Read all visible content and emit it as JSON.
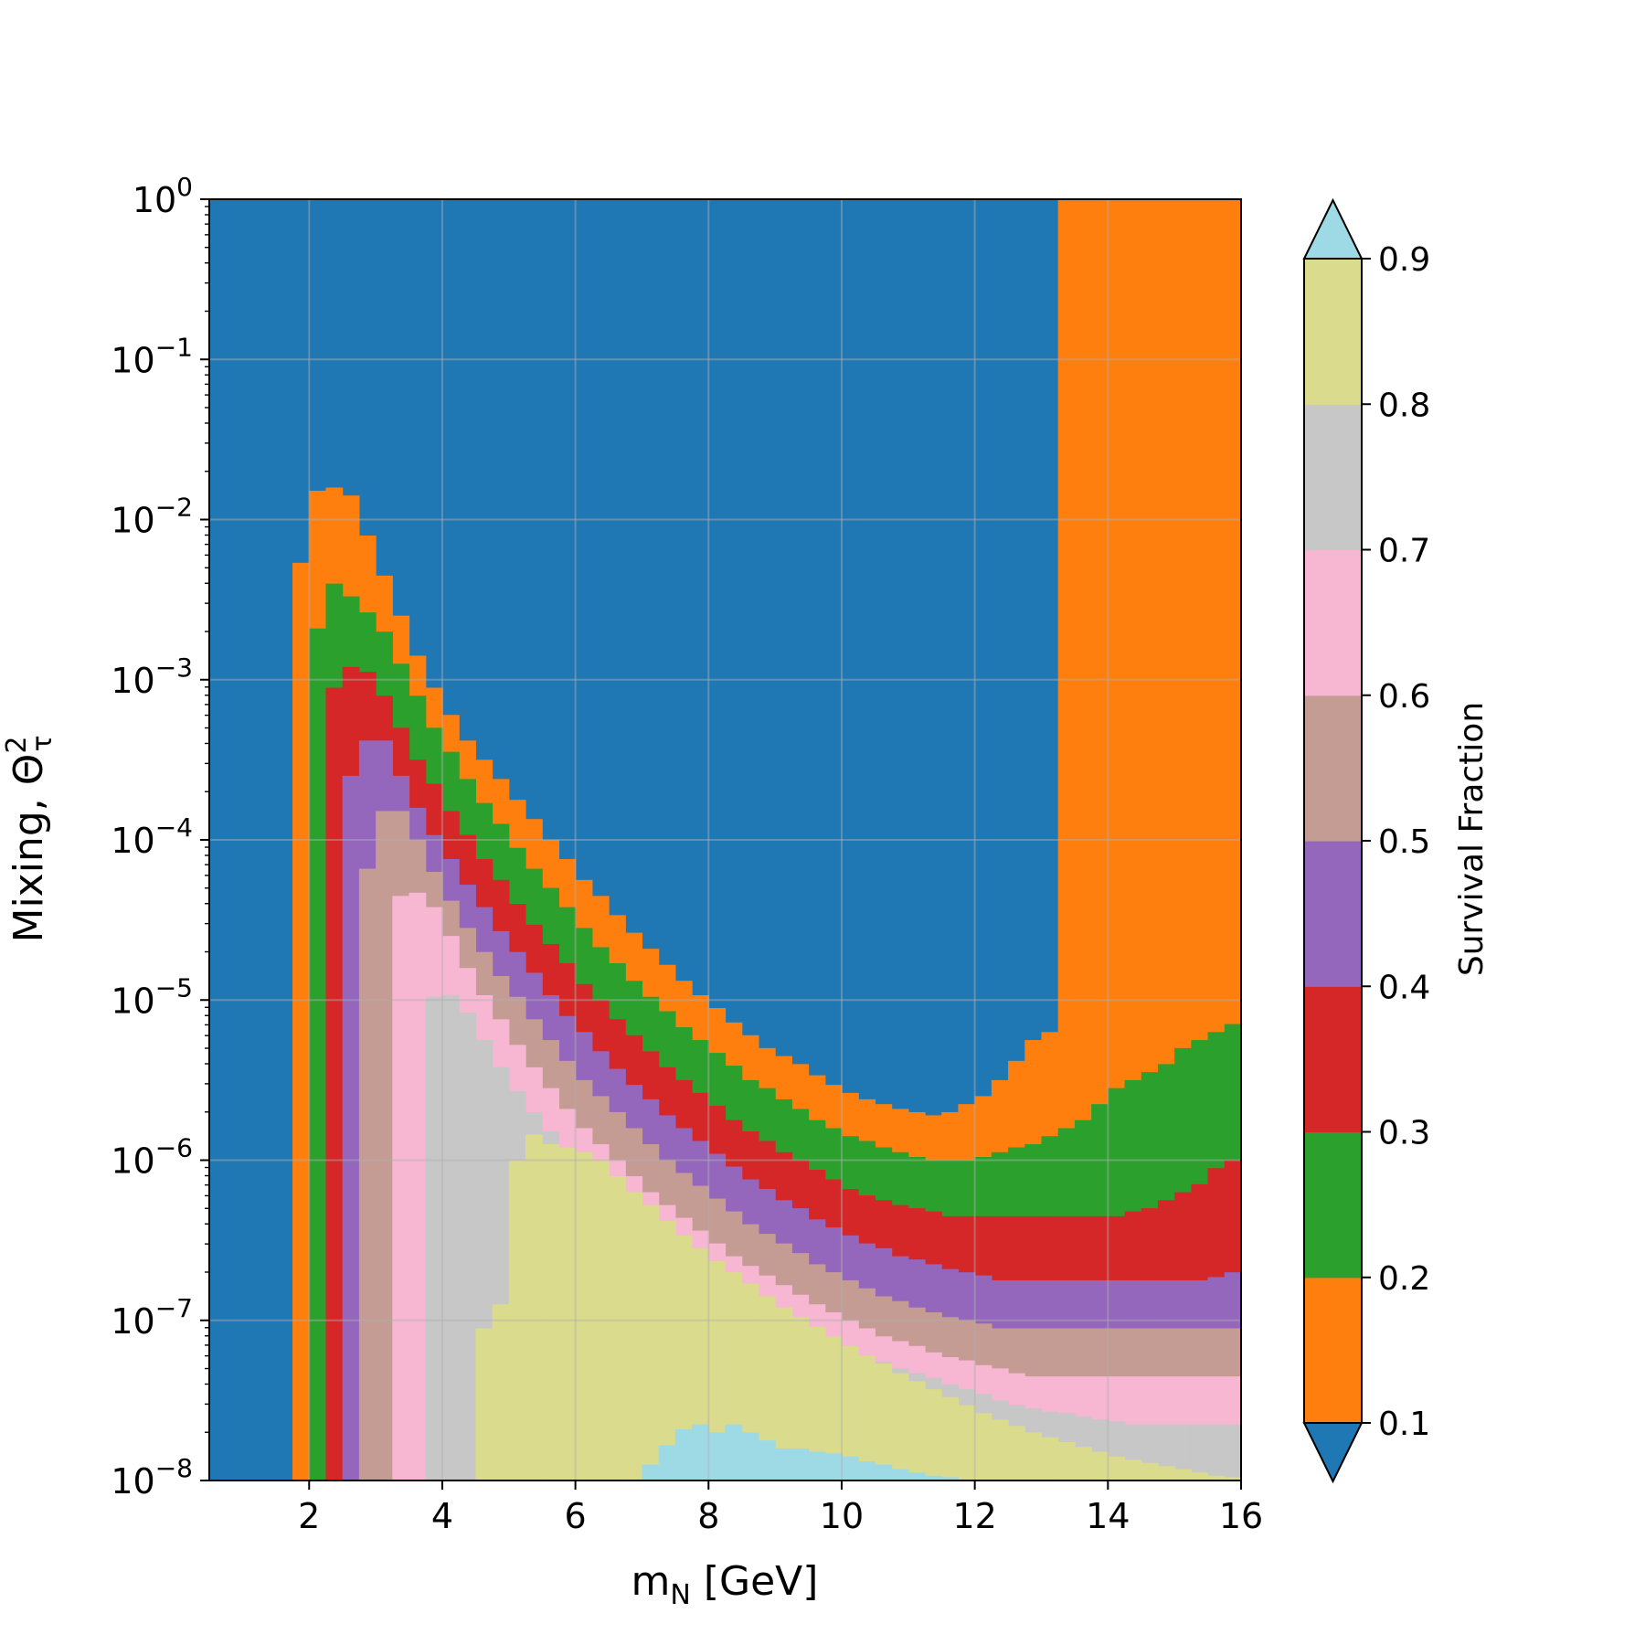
{
  "chart_data": {
    "type": "heatmap",
    "title": "",
    "xlabel": "m",
    "xlabel_sub": "N",
    "xlabel_unit": " [GeV]",
    "ylabel": "Mixing, Θ",
    "ylabel_sup": "2",
    "ylabel_sub": "τ",
    "xlim": [
      0.5,
      16
    ],
    "ylim_log10": [
      -8,
      0
    ],
    "yscale": "log",
    "grid": true,
    "x_ticks": [
      "2",
      "4",
      "6",
      "8",
      "10",
      "12",
      "14",
      "16"
    ],
    "y_ticks": [
      {
        "base": "10",
        "exp": "0"
      },
      {
        "base": "10",
        "exp": "−1"
      },
      {
        "base": "10",
        "exp": "−2"
      },
      {
        "base": "10",
        "exp": "−3"
      },
      {
        "base": "10",
        "exp": "−4"
      },
      {
        "base": "10",
        "exp": "−5"
      },
      {
        "base": "10",
        "exp": "−6"
      },
      {
        "base": "10",
        "exp": "−7"
      },
      {
        "base": "10",
        "exp": "−8"
      }
    ],
    "colorbar": {
      "label": "Survival Fraction",
      "ticks": [
        "0.1",
        "0.2",
        "0.3",
        "0.4",
        "0.5",
        "0.6",
        "0.7",
        "0.8",
        "0.9"
      ],
      "extend": "both",
      "colors": [
        "#1f77b4",
        "#ff7f0e",
        "#2ca02c",
        "#d62728",
        "#9467bd",
        "#c49c94",
        "#f7b6d2",
        "#c7c7c7",
        "#dbdb8d",
        "#9edae5"
      ]
    },
    "x_bins": [
      1.75,
      2.0,
      2.25,
      2.5,
      2.75,
      3.0,
      3.25,
      3.5,
      3.75,
      4.0,
      4.25,
      4.5,
      4.75,
      5.0,
      5.25,
      5.5,
      5.75,
      6.0,
      6.25,
      6.5,
      6.75,
      7.0,
      7.25,
      7.5,
      7.75,
      8.0,
      8.25,
      8.5,
      8.75,
      9.0,
      9.25,
      9.5,
      9.75,
      10.0,
      10.25,
      10.5,
      10.75,
      11.0,
      11.25,
      11.5,
      11.75,
      12.0,
      12.25,
      12.5,
      12.75,
      13.0,
      13.25,
      13.5,
      13.75,
      14.0,
      14.25,
      14.5,
      14.75,
      15.0,
      15.25,
      15.5,
      15.75,
      16.0
    ],
    "contours": [
      {
        "level": "0.1",
        "upper_log10": [
          -2.27,
          -1.82,
          -1.8,
          -1.85,
          -2.1,
          -2.35,
          -2.6,
          -2.85,
          -3.05,
          -3.22,
          -3.38,
          -3.5,
          -3.62,
          -3.75,
          -3.87,
          -4.0,
          -4.12,
          -4.25,
          -4.35,
          -4.47,
          -4.58,
          -4.68,
          -4.78,
          -4.88,
          -4.97,
          -5.05,
          -5.14,
          -5.22,
          -5.3,
          -5.35,
          -5.4,
          -5.47,
          -5.53,
          -5.58,
          -5.62,
          -5.65,
          -5.68,
          -5.7,
          -5.72,
          -5.7,
          -5.65,
          -5.6,
          -5.5,
          -5.38,
          -5.25,
          -5.2,
          0,
          0,
          0,
          0,
          0,
          0,
          0,
          0,
          0,
          0,
          0,
          0
        ]
      },
      {
        "level": "0.2",
        "upper_log10": [
          -8,
          -2.68,
          -2.4,
          -2.48,
          -2.58,
          -2.7,
          -2.9,
          -3.1,
          -3.3,
          -3.45,
          -3.62,
          -3.77,
          -3.9,
          -4.05,
          -4.18,
          -4.3,
          -4.42,
          -4.55,
          -4.67,
          -4.77,
          -4.88,
          -4.98,
          -5.07,
          -5.17,
          -5.25,
          -5.33,
          -5.41,
          -5.5,
          -5.55,
          -5.62,
          -5.68,
          -5.75,
          -5.8,
          -5.85,
          -5.88,
          -5.92,
          -5.95,
          -5.98,
          -6.0,
          -6.0,
          -6.0,
          -5.98,
          -5.95,
          -5.92,
          -5.9,
          -5.85,
          -5.8,
          -5.75,
          -5.65,
          -5.55,
          -5.5,
          -5.45,
          -5.4,
          -5.3,
          -5.25,
          -5.2,
          -5.15,
          -5.1
        ]
      },
      {
        "level": "0.3",
        "upper_log10": [
          -8,
          -8,
          -3.05,
          -2.92,
          -2.95,
          -3.1,
          -3.3,
          -3.5,
          -3.65,
          -3.82,
          -3.97,
          -4.12,
          -4.25,
          -4.4,
          -4.53,
          -4.65,
          -4.77,
          -4.9,
          -5.0,
          -5.12,
          -5.22,
          -5.32,
          -5.42,
          -5.5,
          -5.58,
          -5.66,
          -5.75,
          -5.82,
          -5.88,
          -5.95,
          -6.0,
          -6.06,
          -6.12,
          -6.18,
          -6.22,
          -6.25,
          -6.28,
          -6.3,
          -6.32,
          -6.35,
          -6.35,
          -6.35,
          -6.35,
          -6.35,
          -6.35,
          -6.35,
          -6.35,
          -6.35,
          -6.35,
          -6.35,
          -6.32,
          -6.3,
          -6.25,
          -6.2,
          -6.15,
          -6.05,
          -6.0,
          -6.0
        ]
      },
      {
        "level": "0.4",
        "upper_log10": [
          -8,
          -8,
          -8,
          -3.6,
          -3.38,
          -3.38,
          -3.6,
          -3.8,
          -3.97,
          -4.12,
          -4.28,
          -4.42,
          -4.57,
          -4.7,
          -4.83,
          -4.97,
          -5.1,
          -5.2,
          -5.32,
          -5.43,
          -5.53,
          -5.62,
          -5.72,
          -5.8,
          -5.88,
          -5.96,
          -6.04,
          -6.12,
          -6.18,
          -6.25,
          -6.3,
          -6.37,
          -6.42,
          -6.47,
          -6.52,
          -6.55,
          -6.6,
          -6.62,
          -6.65,
          -6.68,
          -6.7,
          -6.72,
          -6.75,
          -6.75,
          -6.75,
          -6.75,
          -6.75,
          -6.75,
          -6.75,
          -6.75,
          -6.75,
          -6.75,
          -6.75,
          -6.75,
          -6.75,
          -6.73,
          -6.7,
          -6.65
        ]
      },
      {
        "level": "0.5",
        "upper_log10": [
          -8,
          -8,
          -8,
          -8,
          -4.18,
          -3.82,
          -3.82,
          -4.0,
          -4.2,
          -4.38,
          -4.55,
          -4.7,
          -4.85,
          -4.98,
          -5.12,
          -5.25,
          -5.38,
          -5.5,
          -5.6,
          -5.7,
          -5.8,
          -5.9,
          -6.0,
          -6.08,
          -6.16,
          -6.24,
          -6.32,
          -6.4,
          -6.46,
          -6.52,
          -6.58,
          -6.65,
          -6.7,
          -6.75,
          -6.8,
          -6.85,
          -6.88,
          -6.92,
          -6.95,
          -6.98,
          -7.0,
          -7.02,
          -7.05,
          -7.05,
          -7.05,
          -7.05,
          -7.05,
          -7.05,
          -7.05,
          -7.05,
          -7.05,
          -7.05,
          -7.05,
          -7.05,
          -7.05,
          -7.05,
          -7.05,
          -7.05
        ]
      },
      {
        "level": "0.6",
        "upper_log10": [
          -8,
          -8,
          -8,
          -8,
          -8,
          -8,
          -4.35,
          -4.33,
          -4.42,
          -4.6,
          -4.8,
          -4.97,
          -5.12,
          -5.28,
          -5.42,
          -5.55,
          -5.68,
          -5.8,
          -5.9,
          -6.0,
          -6.1,
          -6.2,
          -6.28,
          -6.36,
          -6.44,
          -6.52,
          -6.6,
          -6.66,
          -6.72,
          -6.78,
          -6.84,
          -6.9,
          -6.95,
          -7.0,
          -7.05,
          -7.1,
          -7.13,
          -7.16,
          -7.2,
          -7.23,
          -7.25,
          -7.28,
          -7.3,
          -7.33,
          -7.35,
          -7.35,
          -7.35,
          -7.35,
          -7.35,
          -7.35,
          -7.35,
          -7.35,
          -7.35,
          -7.35,
          -7.35,
          -7.35,
          -7.35,
          -7.35
        ]
      },
      {
        "level": "0.7",
        "upper_log10": [
          -8,
          -8,
          -8,
          -8,
          -8,
          -8,
          -8,
          -8,
          -4.98,
          -4.97,
          -5.08,
          -5.25,
          -5.42,
          -5.57,
          -5.7,
          -5.82,
          -5.92,
          -6.03,
          -6.13,
          -6.22,
          -6.32,
          -6.4,
          -6.48,
          -6.56,
          -6.64,
          -6.72,
          -6.79,
          -6.86,
          -6.92,
          -6.98,
          -7.03,
          -7.08,
          -7.13,
          -7.18,
          -7.22,
          -7.26,
          -7.3,
          -7.33,
          -7.36,
          -7.4,
          -7.43,
          -7.46,
          -7.5,
          -7.53,
          -7.55,
          -7.57,
          -7.58,
          -7.6,
          -7.62,
          -7.63,
          -7.65,
          -7.65,
          -7.65,
          -7.65,
          -7.65,
          -7.65,
          -7.65,
          -7.65
        ]
      },
      {
        "level": "0.8",
        "upper_log10": [
          -8,
          -8,
          -8,
          -8,
          -8,
          -8,
          -8,
          -8,
          -8,
          -8,
          -8,
          -7.05,
          -6.9,
          -6.0,
          -5.84,
          -5.9,
          -5.92,
          -5.95,
          -6.0,
          -6.1,
          -6.2,
          -6.28,
          -6.38,
          -6.47,
          -6.55,
          -6.63,
          -6.7,
          -6.77,
          -6.85,
          -6.92,
          -6.98,
          -7.04,
          -7.1,
          -7.16,
          -7.22,
          -7.27,
          -7.33,
          -7.38,
          -7.43,
          -7.48,
          -7.53,
          -7.58,
          -7.62,
          -7.66,
          -7.7,
          -7.73,
          -7.76,
          -7.79,
          -7.82,
          -7.85,
          -7.87,
          -7.89,
          -7.91,
          -7.93,
          -7.95,
          -7.97,
          -7.98,
          -8.0
        ]
      },
      {
        "level": "0.9",
        "upper_log10": [
          -8,
          -8,
          -8,
          -8,
          -8,
          -8,
          -8,
          -8,
          -8,
          -8,
          -8,
          -8,
          -8,
          -8,
          -8,
          -8,
          -8,
          -8,
          -8,
          -8,
          -8,
          -7.9,
          -7.78,
          -7.68,
          -7.65,
          -7.7,
          -7.65,
          -7.7,
          -7.75,
          -7.8,
          -7.8,
          -7.82,
          -7.83,
          -7.85,
          -7.88,
          -7.9,
          -7.93,
          -7.95,
          -7.97,
          -7.98,
          -8.0,
          -8,
          -8,
          -8,
          -8,
          -8,
          -8,
          -8,
          -8,
          -8,
          -8,
          -8,
          -8,
          -8,
          -8,
          -8,
          -8,
          -8
        ]
      }
    ]
  }
}
